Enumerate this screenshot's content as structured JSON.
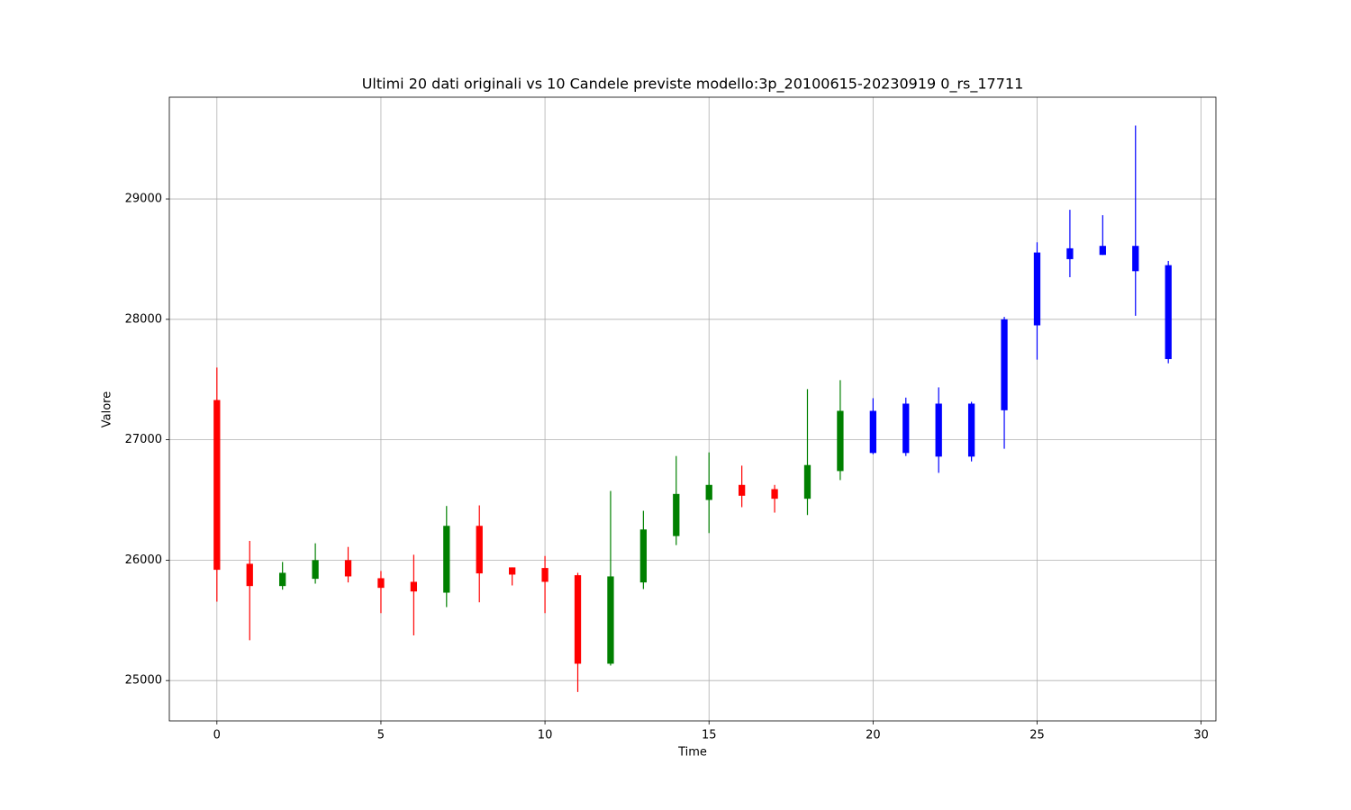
{
  "chart_data": {
    "type": "candlestick",
    "title": "Ultimi 20 dati originali vs 10 Candele previste modello:3p_20100615-20230919 0_rs_17711",
    "x_label": "Time",
    "y_label": "Valore",
    "xlim": [
      -1.45,
      30.45
    ],
    "xticks": [
      0,
      5,
      10,
      15,
      20,
      25,
      30
    ],
    "ylim": [
      24665,
      29845
    ],
    "yticks": [
      25000,
      26000,
      27000,
      28000,
      29000
    ],
    "grid": true,
    "series": [
      {
        "up_color": "green",
        "down_color": "red",
        "x": [
          0,
          1,
          2,
          3,
          4,
          5,
          6,
          7,
          8,
          9,
          10,
          11,
          12,
          13,
          14,
          15,
          16,
          17,
          18,
          19
        ],
        "open": [
          27330,
          25970,
          25785,
          25845,
          26000,
          25850,
          25820,
          25730,
          26285,
          25940,
          25935,
          25875,
          25140,
          25815,
          26200,
          26500,
          26625,
          26590,
          26510,
          26740
        ],
        "high": [
          27600,
          26160,
          25985,
          26140,
          26110,
          25910,
          26045,
          26450,
          26455,
          25940,
          26035,
          25895,
          26575,
          26410,
          26865,
          26895,
          26785,
          26625,
          27420,
          27495
        ],
        "low": [
          25655,
          25335,
          25755,
          25805,
          25815,
          25560,
          25375,
          25610,
          25650,
          25790,
          25560,
          24905,
          25125,
          25760,
          26125,
          26225,
          26440,
          26395,
          26375,
          26665
        ],
        "close": [
          25920,
          25785,
          25895,
          26000,
          25865,
          25770,
          25740,
          26285,
          25890,
          25880,
          25820,
          25140,
          25865,
          26255,
          26550,
          26625,
          26535,
          26510,
          26790,
          27240
        ]
      },
      {
        "color": "blue",
        "x": [
          20,
          21,
          22,
          23,
          24,
          25,
          26,
          27,
          28,
          29
        ],
        "open": [
          27240,
          27300,
          27300,
          27300,
          27245,
          27950,
          28590,
          28535,
          28610,
          28450
        ],
        "high": [
          27345,
          27350,
          27435,
          27315,
          28020,
          28640,
          28910,
          28865,
          29610,
          28485
        ],
        "low": [
          26880,
          26865,
          26725,
          26820,
          26925,
          27665,
          28350,
          28535,
          28030,
          27635
        ],
        "close": [
          26890,
          26890,
          26860,
          26860,
          28000,
          28555,
          28500,
          28610,
          28400,
          27670
        ]
      }
    ]
  }
}
